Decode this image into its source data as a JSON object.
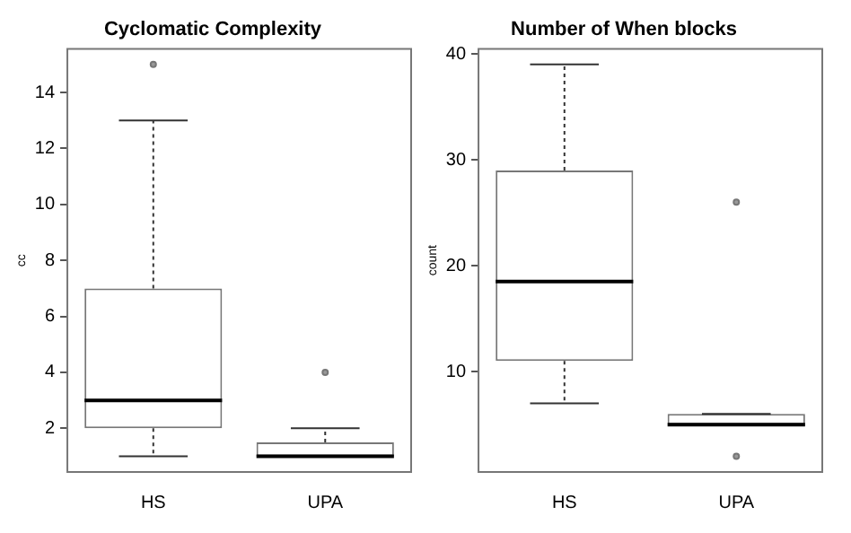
{
  "chart_data": [
    {
      "type": "box",
      "title": "Cyclomatic Complexity",
      "ylabel": "cc",
      "categories": [
        "HS",
        "UPA"
      ],
      "ylim": [
        0.44,
        15.56
      ],
      "yticks": [
        2,
        4,
        6,
        8,
        10,
        12,
        14
      ],
      "boxes": [
        {
          "low": 1,
          "q1": 2,
          "median": 3,
          "q3": 7,
          "high": 13,
          "outliers": [
            15
          ]
        },
        {
          "low": 1,
          "q1": 1,
          "median": 1,
          "q3": 1.5,
          "high": 2,
          "outliers": [
            4
          ]
        }
      ]
    },
    {
      "type": "box",
      "title": "Number of When blocks",
      "ylabel": "count",
      "categories": [
        "HS",
        "UPA"
      ],
      "ylim": [
        0.52,
        40.48
      ],
      "yticks": [
        10,
        20,
        30,
        40
      ],
      "boxes": [
        {
          "low": 7,
          "q1": 11,
          "median": 18.5,
          "q3": 29,
          "high": 39
        },
        {
          "low": 5,
          "q1": 5,
          "median": 5,
          "q3": 6,
          "high": 6,
          "outliers": [
            26,
            2
          ]
        }
      ]
    }
  ]
}
